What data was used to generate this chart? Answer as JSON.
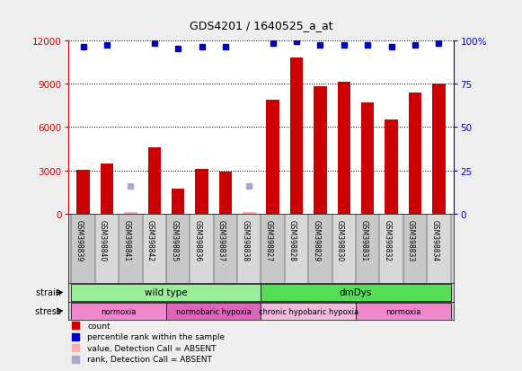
{
  "title": "GDS4201 / 1640525_a_at",
  "samples": [
    "GSM398839",
    "GSM398840",
    "GSM398841",
    "GSM398842",
    "GSM398835",
    "GSM398836",
    "GSM398837",
    "GSM398838",
    "GSM398827",
    "GSM398828",
    "GSM398829",
    "GSM398830",
    "GSM398831",
    "GSM398832",
    "GSM398833",
    "GSM398834"
  ],
  "counts": [
    3050,
    3450,
    120,
    4600,
    1750,
    3100,
    2900,
    120,
    7900,
    10800,
    8800,
    9100,
    7700,
    6500,
    8400,
    9000
  ],
  "percentile_ranks_present": [
    0,
    1,
    3,
    4,
    5,
    6,
    8,
    9,
    10,
    11,
    12,
    13,
    14,
    15
  ],
  "percentile_rank_values": [
    96,
    97,
    98,
    95,
    96,
    96,
    98,
    99,
    97,
    97,
    97,
    96,
    97,
    98
  ],
  "absent_value_indices": [
    2,
    7
  ],
  "absent_rank_indices": [
    2,
    7
  ],
  "absent_rank_pct": [
    16,
    16
  ],
  "count_color": "#cc0000",
  "absent_count_color": "#ffaaaa",
  "rank_color": "#0000cc",
  "absent_rank_color": "#aaaacc",
  "bar_width": 0.55,
  "ylim_left": [
    0,
    12000
  ],
  "ylim_right": [
    0,
    100
  ],
  "yticks_left": [
    0,
    3000,
    6000,
    9000,
    12000
  ],
  "yticks_right": [
    0,
    25,
    50,
    75,
    100
  ],
  "strain_labels": [
    {
      "text": "wild type",
      "start": 0,
      "end": 8,
      "color": "#99ee99"
    },
    {
      "text": "dmDys",
      "start": 8,
      "end": 16,
      "color": "#55dd55"
    }
  ],
  "stress_labels": [
    {
      "text": "normoxia",
      "start": 0,
      "end": 4,
      "color": "#ee88cc"
    },
    {
      "text": "normobaric hypoxia",
      "start": 4,
      "end": 8,
      "color": "#dd66bb"
    },
    {
      "text": "chronic hypobaric hypoxia",
      "start": 8,
      "end": 12,
      "color": "#eebbdd"
    },
    {
      "text": "normoxia",
      "start": 12,
      "end": 16,
      "color": "#ee88cc"
    }
  ],
  "legend_items": [
    {
      "label": "count",
      "color": "#cc0000"
    },
    {
      "label": "percentile rank within the sample",
      "color": "#0000cc"
    },
    {
      "label": "value, Detection Call = ABSENT",
      "color": "#ffaaaa"
    },
    {
      "label": "rank, Detection Call = ABSENT",
      "color": "#aaaacc"
    }
  ],
  "bg_color": "#cccccc",
  "plot_bg_color": "#ffffff",
  "fig_bg_color": "#eeeeee",
  "tick_color_left": "#cc0000",
  "tick_color_right": "#0000cc"
}
